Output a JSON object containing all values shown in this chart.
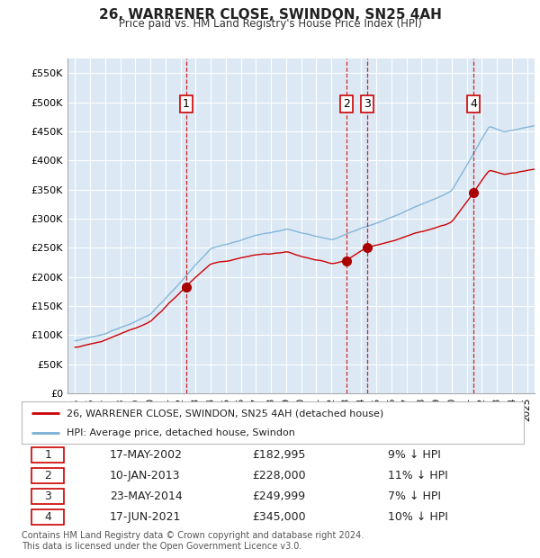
{
  "title": "26, WARRENER CLOSE, SWINDON, SN25 4AH",
  "subtitle": "Price paid vs. HM Land Registry's House Price Index (HPI)",
  "ylabel_ticks": [
    "£0",
    "£50K",
    "£100K",
    "£150K",
    "£200K",
    "£250K",
    "£300K",
    "£350K",
    "£400K",
    "£450K",
    "£500K",
    "£550K"
  ],
  "ylim": [
    0,
    575000
  ],
  "yticks": [
    0,
    50000,
    100000,
    150000,
    200000,
    250000,
    300000,
    350000,
    400000,
    450000,
    500000,
    550000
  ],
  "background_color": "#dce9f5",
  "grid_color": "#ffffff",
  "red_line_color": "#cc0000",
  "blue_line_color": "#7ab0d4",
  "sale_marker_color": "#aa0000",
  "sale_points": [
    {
      "date": 2002.37,
      "price": 182995,
      "label": "1"
    },
    {
      "date": 2013.03,
      "price": 228000,
      "label": "2"
    },
    {
      "date": 2014.39,
      "price": 249999,
      "label": "3"
    },
    {
      "date": 2021.46,
      "price": 345000,
      "label": "4"
    }
  ],
  "legend_entries": [
    "26, WARRENER CLOSE, SWINDON, SN25 4AH (detached house)",
    "HPI: Average price, detached house, Swindon"
  ],
  "table_rows": [
    [
      "1",
      "17-MAY-2002",
      "£182,995",
      "9% ↓ HPI"
    ],
    [
      "2",
      "10-JAN-2013",
      "£228,000",
      "11% ↓ HPI"
    ],
    [
      "3",
      "23-MAY-2014",
      "£249,999",
      "7% ↓ HPI"
    ],
    [
      "4",
      "17-JUN-2021",
      "£345,000",
      "10% ↓ HPI"
    ]
  ],
  "footer": "Contains HM Land Registry data © Crown copyright and database right 2024.\nThis data is licensed under the Open Government Licence v3.0.",
  "xlim_start": 1994.5,
  "xlim_end": 2025.5,
  "xtick_years": [
    1995,
    1996,
    1997,
    1998,
    1999,
    2000,
    2001,
    2002,
    2003,
    2004,
    2005,
    2006,
    2007,
    2008,
    2009,
    2010,
    2011,
    2012,
    2013,
    2014,
    2015,
    2016,
    2017,
    2018,
    2019,
    2020,
    2021,
    2022,
    2023,
    2024,
    2025
  ]
}
